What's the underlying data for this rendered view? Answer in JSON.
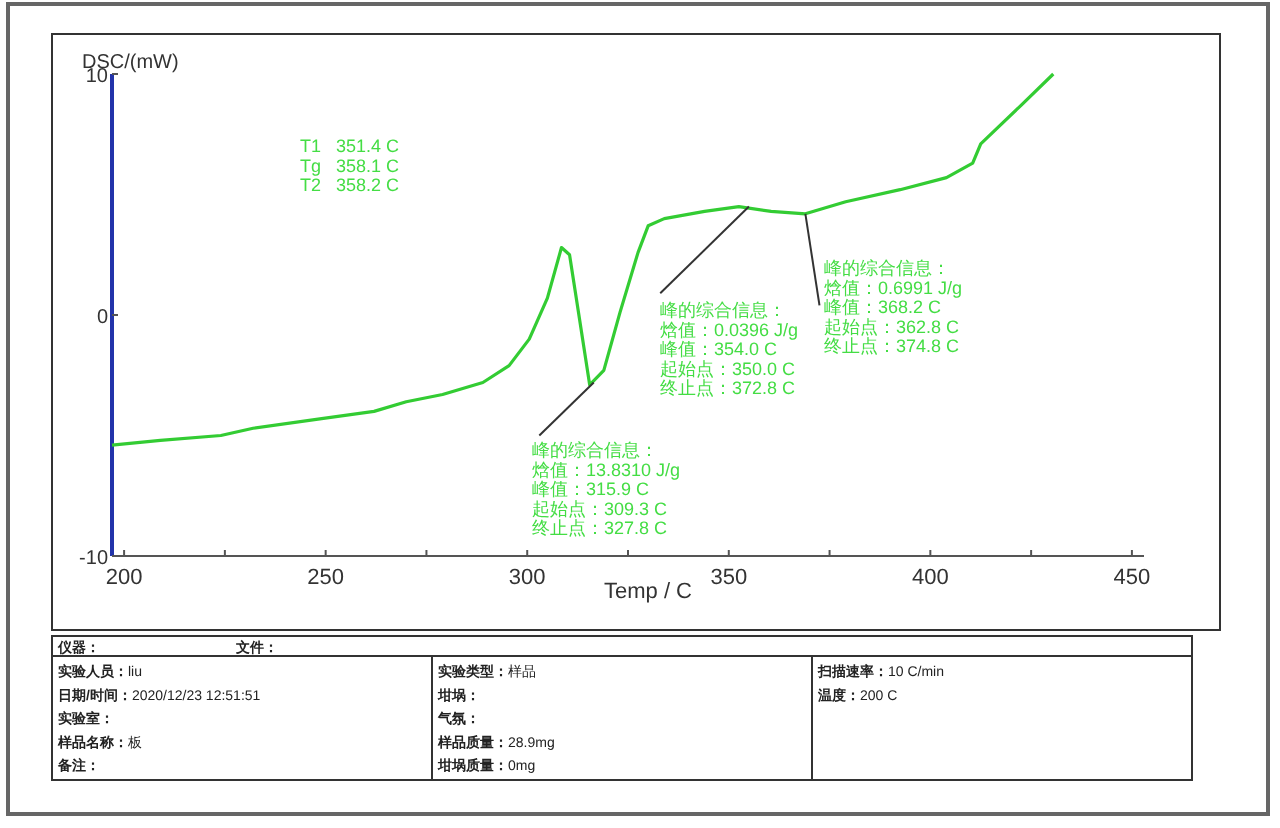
{
  "chart_data": {
    "type": "line",
    "xlabel": "Temp / C",
    "ylabel": "DSC/(mW)",
    "xlim": [
      197,
      453
    ],
    "ylim": [
      -10,
      10
    ],
    "xticks": [
      200,
      {
        "value": 225,
        "label": null
      },
      250,
      {
        "value": 275,
        "label": null
      },
      300,
      {
        "value": 325,
        "label": null
      },
      350,
      {
        "value": 375,
        "label": null
      },
      400,
      {
        "value": 425,
        "label": null
      },
      450
    ],
    "yticks": [
      -10,
      0,
      10
    ],
    "grid": false,
    "marker": "none",
    "line_style": "solid",
    "series": [
      {
        "color": "#33cc33",
        "x": [
          197,
          209,
          224,
          232,
          249,
          262,
          270,
          279,
          289,
          295.5,
          300.5,
          305,
          308.5,
          310.5,
          313,
          315.5,
          319,
          323,
          327.5,
          330,
          334,
          344,
          352.5,
          360.5,
          369,
          379,
          392.5,
          404,
          410.5,
          412.5,
          422.5,
          430.5
        ],
        "values": [
          -5.4,
          -5.2,
          -5.0,
          -4.7,
          -4.3,
          -4.0,
          -3.6,
          -3.3,
          -2.8,
          -2.1,
          -1.0,
          0.7,
          2.8,
          2.5,
          -0.2,
          -2.9,
          -2.3,
          0.1,
          2.6,
          3.7,
          4.0,
          4.3,
          4.5,
          4.3,
          4.2,
          4.7,
          5.2,
          5.7,
          6.3,
          7.1,
          8.7,
          10.0
        ]
      },
      {
        "color": "#333333",
        "x": [
          303,
          316.5
        ],
        "values": [
          -5.0,
          -2.8
        ]
      },
      {
        "color": "#333333",
        "x": [
          333,
          355
        ],
        "values": [
          0.9,
          4.5
        ]
      },
      {
        "color": "#333333",
        "x": [
          369,
          372.5
        ],
        "values": [
          4.2,
          0.4
        ]
      }
    ],
    "annotations": [
      "T1   351.4 C",
      "Tg   358.1 C",
      "T2   358.2 C",
      "峰的综合信息：",
      "焓值：13.8310 J/g",
      "峰值：315.9 C",
      "起始点：309.3 C",
      "终止点：327.8 C",
      "峰的综合信息：",
      "焓值：0.0396 J/g",
      "峰值：354.0 C",
      "起始点：350.0 C",
      "终止点：372.8 C",
      "峰的综合信息：",
      "焓值：0.6991 J/g",
      "峰值：368.2 C",
      "起始点：362.8 C",
      "终止点：374.8 C",
      "仪器：",
      "文件：",
      "实验人员：liu",
      "日期/时间：2020/12/23 12:51:51",
      "实验室：",
      "样品名称：板",
      "备注：",
      "实验类型：样品",
      "坩埚：",
      "气氛：",
      "样品质量：28.9mg",
      "坩埚质量：0mg",
      "扫描速率：10 C/min",
      "温度：200 C"
    ]
  }
}
